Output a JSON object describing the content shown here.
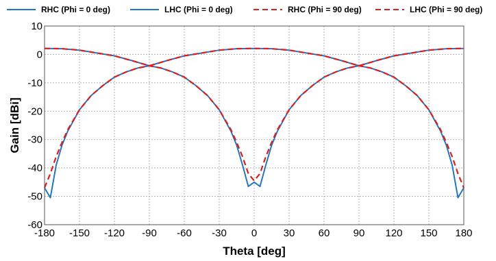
{
  "chart_data": {
    "type": "line",
    "xlabel": "Theta [deg]",
    "ylabel": "Gain [dBi]",
    "xlim": [
      -180,
      180
    ],
    "ylim": [
      -60,
      10
    ],
    "xticks": [
      -180,
      -150,
      -120,
      -90,
      -60,
      -30,
      0,
      30,
      60,
      90,
      120,
      150,
      180
    ],
    "yticks": [
      10,
      0,
      -10,
      -20,
      -30,
      -40,
      -50,
      -60
    ],
    "grid": true,
    "legend_position": "top",
    "series": [
      {
        "name": "RHC (Phi = 0 deg)",
        "color": "#1f77c8",
        "dash": "solid",
        "x": [
          -180,
          -165,
          -150,
          -135,
          -120,
          -105,
          -90,
          -75,
          -60,
          -45,
          -30,
          -15,
          0,
          15,
          30,
          45,
          60,
          75,
          90,
          105,
          120,
          135,
          150,
          165,
          180
        ],
        "y": [
          2.1,
          2.0,
          1.5,
          0.5,
          -0.5,
          -2.2,
          -4.0,
          -2.2,
          -0.5,
          0.5,
          1.5,
          2.0,
          2.1,
          2.0,
          1.5,
          0.5,
          -0.5,
          -2.2,
          -4.0,
          -2.2,
          -0.5,
          0.5,
          1.5,
          2.0,
          2.1
        ]
      },
      {
        "name": "LHC (Phi = 0 deg)",
        "color": "#1f77c8",
        "dash": "solid",
        "x": [
          -180,
          -175,
          -170,
          -165,
          -160,
          -150,
          -140,
          -130,
          -120,
          -110,
          -100,
          -90,
          -80,
          -70,
          -60,
          -50,
          -40,
          -30,
          -20,
          -15,
          -10,
          -5,
          0,
          5,
          10,
          15,
          20,
          30,
          40,
          50,
          60,
          70,
          80,
          90,
          100,
          110,
          120,
          130,
          140,
          150,
          160,
          165,
          170,
          175,
          180
        ],
        "y": [
          -47,
          -50.5,
          -39,
          -32,
          -27,
          -19.5,
          -14.5,
          -11,
          -8,
          -6.2,
          -4.8,
          -4.0,
          -4.8,
          -6.2,
          -8,
          -11,
          -14.5,
          -19.5,
          -27,
          -32,
          -39,
          -46.5,
          -45,
          -46.5,
          -39,
          -32,
          -27,
          -19.5,
          -14.5,
          -11,
          -8,
          -6.2,
          -4.8,
          -4.0,
          -4.8,
          -6.2,
          -8,
          -11,
          -14.5,
          -19.5,
          -27,
          -32,
          -39,
          -50.5,
          -47
        ]
      },
      {
        "name": "RHC (Phi = 90 deg)",
        "color": "#e21b1b",
        "dash": "dashed",
        "x": [
          -180,
          -165,
          -150,
          -135,
          -120,
          -105,
          -90,
          -75,
          -60,
          -45,
          -30,
          -15,
          0,
          15,
          30,
          45,
          60,
          75,
          90,
          105,
          120,
          135,
          150,
          165,
          180
        ],
        "y": [
          2.1,
          2.0,
          1.5,
          0.5,
          -0.5,
          -2.2,
          -4.0,
          -2.2,
          -0.5,
          0.5,
          1.5,
          2.0,
          2.1,
          2.0,
          1.5,
          0.5,
          -0.5,
          -2.2,
          -4.0,
          -2.2,
          -0.5,
          0.5,
          1.5,
          2.0,
          2.1
        ]
      },
      {
        "name": "LHC (Phi = 90 deg)",
        "color": "#e21b1b",
        "dash": "dashed",
        "x": [
          -180,
          -175,
          -170,
          -165,
          -160,
          -150,
          -140,
          -130,
          -120,
          -110,
          -100,
          -90,
          -80,
          -70,
          -60,
          -50,
          -40,
          -30,
          -20,
          -15,
          -10,
          -5,
          0,
          5,
          10,
          15,
          20,
          30,
          40,
          50,
          60,
          70,
          80,
          90,
          100,
          110,
          120,
          130,
          140,
          150,
          160,
          165,
          170,
          175,
          180
        ],
        "y": [
          -47,
          -42,
          -36,
          -31,
          -26.5,
          -19.5,
          -14.5,
          -11,
          -8,
          -6.2,
          -4.8,
          -4.0,
          -4.8,
          -6.2,
          -8,
          -11,
          -14.5,
          -19.5,
          -26.5,
          -31,
          -36,
          -42,
          -44.5,
          -42,
          -36,
          -31,
          -26.5,
          -19.5,
          -14.5,
          -11,
          -8,
          -6.2,
          -4.8,
          -4.0,
          -4.8,
          -6.2,
          -8,
          -11,
          -14.5,
          -19.5,
          -26.5,
          -31,
          -36,
          -42,
          -47
        ]
      }
    ]
  }
}
